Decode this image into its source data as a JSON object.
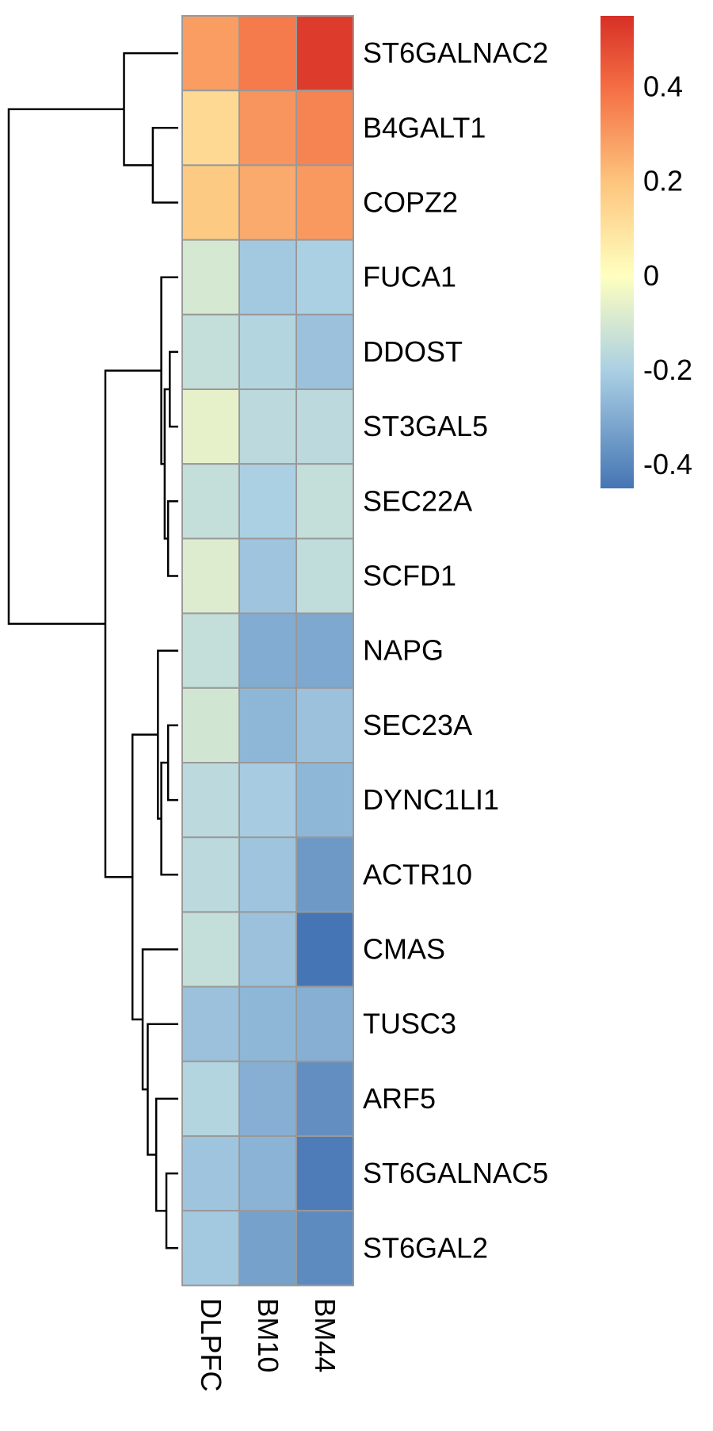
{
  "chart_data": {
    "type": "heatmap",
    "title": "",
    "columns": [
      "DLPFC",
      "BM10",
      "BM44"
    ],
    "rows": [
      {
        "label": "ST6GALNAC2",
        "values": [
          0.29,
          0.37,
          0.52
        ]
      },
      {
        "label": "B4GALT1",
        "values": [
          0.13,
          0.31,
          0.35
        ]
      },
      {
        "label": "COPZ2",
        "values": [
          0.18,
          0.26,
          0.3
        ]
      },
      {
        "label": "FUCA1",
        "values": [
          -0.1,
          -0.22,
          -0.2
        ]
      },
      {
        "label": "DDOST",
        "values": [
          -0.14,
          -0.18,
          -0.24
        ]
      },
      {
        "label": "ST3GAL5",
        "values": [
          -0.06,
          -0.16,
          -0.16
        ]
      },
      {
        "label": "SEC22A",
        "values": [
          -0.14,
          -0.2,
          -0.14
        ]
      },
      {
        "label": "SCFD1",
        "values": [
          -0.08,
          -0.23,
          -0.15
        ]
      },
      {
        "label": "NAPG",
        "values": [
          -0.14,
          -0.3,
          -0.31
        ]
      },
      {
        "label": "SEC23A",
        "values": [
          -0.11,
          -0.27,
          -0.24
        ]
      },
      {
        "label": "DYNC1LI1",
        "values": [
          -0.16,
          -0.21,
          -0.27
        ]
      },
      {
        "label": "ACTR10",
        "values": [
          -0.16,
          -0.23,
          -0.35
        ]
      },
      {
        "label": "CMAS",
        "values": [
          -0.14,
          -0.24,
          -0.45
        ]
      },
      {
        "label": "TUSC3",
        "values": [
          -0.24,
          -0.27,
          -0.29
        ]
      },
      {
        "label": "ARF5",
        "values": [
          -0.18,
          -0.29,
          -0.38
        ]
      },
      {
        "label": "ST6GALNAC5",
        "values": [
          -0.23,
          -0.28,
          -0.43
        ]
      },
      {
        "label": "ST6GAL2",
        "values": [
          -0.22,
          -0.33,
          -0.39
        ]
      }
    ],
    "color_scale": {
      "min": -0.45,
      "max": 0.55,
      "stops": [
        {
          "value": -0.45,
          "color": "#4575b4"
        },
        {
          "value": -0.2,
          "color": "#abd0e4"
        },
        {
          "value": 0.0,
          "color": "#ffffbf"
        },
        {
          "value": 0.2,
          "color": "#fdc47d"
        },
        {
          "value": 0.4,
          "color": "#f46d43"
        },
        {
          "value": 0.55,
          "color": "#d73027"
        }
      ]
    },
    "legend": {
      "placement": "right",
      "ticks": [
        {
          "value": 0.4,
          "label": "0.4"
        },
        {
          "value": 0.2,
          "label": "0.2"
        },
        {
          "value": 0.0,
          "label": "0"
        },
        {
          "value": -0.2,
          "label": "-0.2"
        },
        {
          "value": -0.4,
          "label": "-0.4"
        }
      ]
    },
    "dendrogram": {
      "placement": "left",
      "merges": [
        {
          "a": 4,
          "b": 5,
          "height": 0.05
        },
        {
          "a": 6,
          "b": 7,
          "height": 0.06
        },
        {
          "a": "m1",
          "b": "m0",
          "height": 0.08
        },
        {
          "a": 3,
          "b": "m2",
          "height": 0.1
        },
        {
          "a": 9,
          "b": 10,
          "height": 0.06
        },
        {
          "a": 15,
          "b": 16,
          "height": 0.07
        },
        {
          "a": "m4",
          "b": 11,
          "height": 0.1
        },
        {
          "a": 8,
          "b": "m6",
          "height": 0.12
        },
        {
          "a": 14,
          "b": "m5",
          "height": 0.13
        },
        {
          "a": 13,
          "b": "m8",
          "height": 0.18
        },
        {
          "a": 12,
          "b": "m9",
          "height": 0.21
        },
        {
          "a": "m7",
          "b": "m10",
          "height": 0.27
        },
        {
          "a": "m3",
          "b": "m11",
          "height": 0.43
        },
        {
          "a": 1,
          "b": 2,
          "height": 0.15
        },
        {
          "a": 0,
          "b": "m13",
          "height": 0.32
        },
        {
          "a": "m14",
          "b": "m12",
          "height": 1.0
        }
      ],
      "color": "#000000"
    },
    "grid_color": "#999999"
  }
}
